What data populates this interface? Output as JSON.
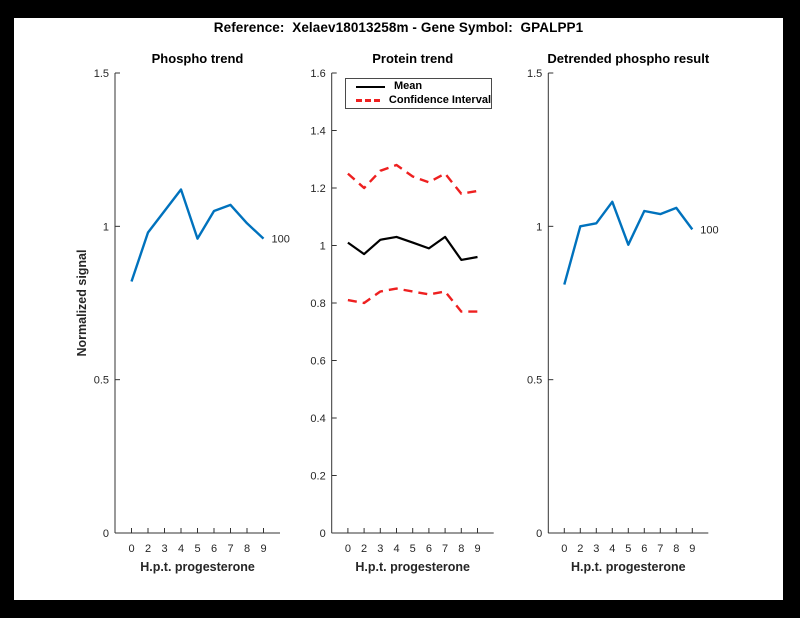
{
  "figure_title": "Reference:  Xelaev18013258m - Gene Symbol:  GPALPP1",
  "colors": {
    "background": "#000000",
    "canvas": "#ffffff",
    "blue_line": "#0072bd",
    "red_dashed": "#ee2020",
    "mean_line": "#000000",
    "axis": "#333333",
    "tick_text": "#262626"
  },
  "chart_data": [
    {
      "type": "line",
      "title": "Phospho trend",
      "xlabel": "H.p.t. progesterone",
      "ylabel": "Normalized signal",
      "x_tick_labels": [
        "0",
        "2",
        "3",
        "4",
        "5",
        "6",
        "7",
        "8",
        "9"
      ],
      "y_ticks": [
        {
          "v": 0,
          "label": "0"
        },
        {
          "v": 0.5,
          "label": "0.5"
        },
        {
          "v": 1,
          "label": "1"
        },
        {
          "v": 1.5,
          "label": "1.5"
        }
      ],
      "ylim": [
        0,
        1.5
      ],
      "grid": false,
      "legend": null,
      "end_label": "100",
      "series": [
        {
          "name": "phospho-signal",
          "color": "#0072bd",
          "style": "solid",
          "width": 2.4,
          "values": [
            0.82,
            0.98,
            1.05,
            1.12,
            0.96,
            1.05,
            1.07,
            1.01,
            0.96
          ]
        }
      ]
    },
    {
      "type": "line",
      "title": "Protein trend",
      "xlabel": "H.p.t. progesterone",
      "ylabel": "",
      "x_tick_labels": [
        "0",
        "2",
        "3",
        "4",
        "5",
        "6",
        "7",
        "8",
        "9"
      ],
      "y_ticks": [
        {
          "v": 0,
          "label": "0"
        },
        {
          "v": 0.2,
          "label": "0.2"
        },
        {
          "v": 0.4,
          "label": "0.4"
        },
        {
          "v": 0.6,
          "label": "0.6"
        },
        {
          "v": 0.8,
          "label": "0.8"
        },
        {
          "v": 1,
          "label": "1"
        },
        {
          "v": 1.2,
          "label": "1.2"
        },
        {
          "v": 1.4,
          "label": "1.4"
        },
        {
          "v": 1.6,
          "label": "1.6"
        }
      ],
      "ylim": [
        0,
        1.6
      ],
      "grid": false,
      "legend": {
        "position": "northwest-inside",
        "entries": [
          {
            "label": "Mean",
            "color": "#000000",
            "style": "solid"
          },
          {
            "label": "Confidence Interval",
            "color": "#ee2020",
            "style": "dashed"
          }
        ]
      },
      "end_label": null,
      "series": [
        {
          "name": "mean",
          "color": "#000000",
          "style": "solid",
          "width": 2.2,
          "values": [
            1.01,
            0.97,
            1.02,
            1.03,
            1.01,
            0.99,
            1.03,
            0.95,
            0.96
          ]
        },
        {
          "name": "confidence-upper",
          "color": "#ee2020",
          "style": "dashed",
          "width": 2.4,
          "values": [
            1.25,
            1.2,
            1.26,
            1.28,
            1.24,
            1.22,
            1.25,
            1.18,
            1.19
          ]
        },
        {
          "name": "confidence-lower",
          "color": "#ee2020",
          "style": "dashed",
          "width": 2.4,
          "values": [
            0.81,
            0.8,
            0.84,
            0.85,
            0.84,
            0.83,
            0.84,
            0.77,
            0.77
          ]
        }
      ]
    },
    {
      "type": "line",
      "title": "Detrended phospho result",
      "xlabel": "H.p.t. progesterone",
      "ylabel": "",
      "x_tick_labels": [
        "0",
        "2",
        "3",
        "4",
        "5",
        "6",
        "7",
        "8",
        "9"
      ],
      "y_ticks": [
        {
          "v": 0,
          "label": "0"
        },
        {
          "v": 0.5,
          "label": "0.5"
        },
        {
          "v": 1,
          "label": "1"
        },
        {
          "v": 1.5,
          "label": "1.5"
        }
      ],
      "ylim": [
        0,
        1.5
      ],
      "grid": false,
      "legend": null,
      "end_label": "100",
      "series": [
        {
          "name": "detrended-phospho-signal",
          "color": "#0072bd",
          "style": "solid",
          "width": 2.4,
          "values": [
            0.81,
            1.0,
            1.01,
            1.08,
            0.94,
            1.05,
            1.04,
            1.06,
            0.99
          ]
        }
      ]
    }
  ]
}
